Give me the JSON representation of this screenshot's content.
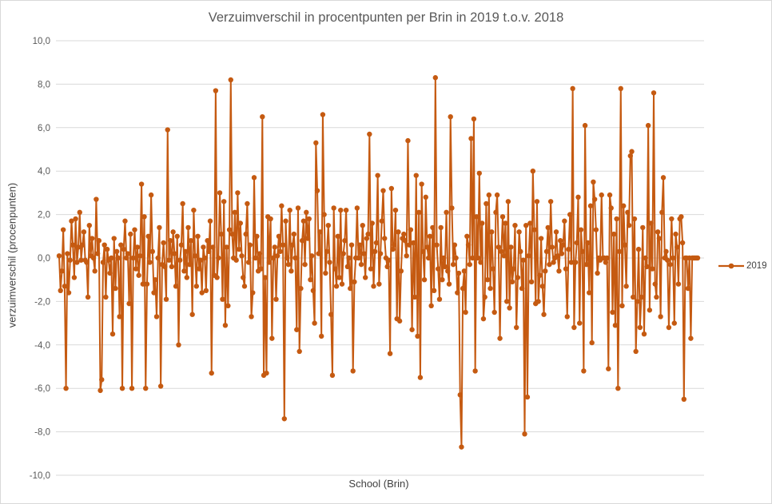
{
  "chart_data": {
    "type": "line",
    "title": "Verzuimverschil in procentpunten per Brin in 2019 t.o.v. 2018",
    "xlabel": "School (Brin)",
    "ylabel": "verzuimverschil (procenpunten)",
    "ylim": [
      -10,
      10
    ],
    "ytick_labels": [
      "10,0",
      "8,0",
      "6,0",
      "4,0",
      "2,0",
      "0,0",
      "-2,0",
      "-4,0",
      "-6,0",
      "-8,0",
      "-10,0"
    ],
    "grid": true,
    "legend": "right",
    "color": "#c55a11",
    "series": [
      {
        "name": "2019",
        "values": [
          0.1,
          -1.5,
          -0.6,
          1.3,
          -1.3,
          -6.0,
          0.2,
          -1.6,
          -0.1,
          1.7,
          0.6,
          -0.9,
          1.8,
          -0.2,
          0.5,
          2.1,
          -0.1,
          0.6,
          1.2,
          -0.1,
          -0.2,
          -1.8,
          1.5,
          0.1,
          0.9,
          0.0,
          -0.6,
          2.7,
          0.2,
          0.8,
          -6.1,
          -5.6,
          -0.2,
          0.6,
          -1.8,
          0.4,
          -0.1,
          -0.7,
          0.0,
          -3.5,
          0.9,
          -1.4,
          0.3,
          0.0,
          -2.7,
          0.6,
          -6.0,
          0.4,
          1.7,
          0.0,
          0.2,
          -2.1,
          1.1,
          -6.0,
          0.0,
          1.3,
          -0.5,
          0.5,
          -0.8,
          0.1,
          3.4,
          -1.2,
          1.9,
          -6.0,
          -1.2,
          1.0,
          -0.2,
          2.9,
          0.3,
          -1.6,
          -1.0,
          -2.7,
          0.0,
          1.4,
          -5.9,
          -0.3,
          0.7,
          -0.4,
          -1.9,
          5.9,
          -0.1,
          0.8,
          -0.4,
          1.2,
          0.2,
          -1.3,
          1.0,
          -4.0,
          -0.1,
          0.6,
          2.5,
          -0.6,
          0.3,
          -0.9,
          1.4,
          -0.3,
          0.8,
          -2.6,
          2.2,
          0.1,
          -1.3,
          1.0,
          -0.5,
          -0.1,
          -1.6,
          0.5,
          0.0,
          -1.5,
          0.8,
          0.3,
          1.7,
          -5.3,
          0.5,
          -0.8,
          7.7,
          -0.9,
          0.0,
          3.0,
          1.1,
          -1.9,
          2.6,
          -3.1,
          0.5,
          -2.2,
          1.3,
          8.2,
          1.1,
          0.0,
          2.1,
          -0.1,
          3.0,
          0.4,
          1.6,
          0.1,
          -0.9,
          -1.3,
          1.1,
          2.5,
          -0.2,
          0.6,
          -2.7,
          -1.6,
          3.7,
          0.0,
          1.0,
          -0.6,
          0.2,
          -0.5,
          6.5,
          -5.4,
          -0.9,
          -5.3,
          1.9,
          -0.2,
          1.8,
          -3.7,
          0.0,
          0.5,
          -1.9,
          0.1,
          1.0,
          0.3,
          2.4,
          0.6,
          -7.4,
          1.7,
          0.0,
          -0.3,
          2.2,
          -0.6,
          0.6,
          1.1,
          0.0,
          -3.3,
          2.3,
          -4.3,
          -1.4,
          0.8,
          1.7,
          -0.3,
          2.1,
          0.9,
          1.8,
          -1.0,
          0.1,
          -1.5,
          -3.0,
          5.3,
          3.1,
          0.2,
          1.2,
          -3.6,
          6.6,
          2.0,
          -0.7,
          0.3,
          1.5,
          -0.2,
          -2.6,
          -5.4,
          2.3,
          -0.5,
          -1.3,
          1.0,
          -0.9,
          2.2,
          -1.2,
          0.2,
          0.8,
          2.2,
          -0.4,
          0.0,
          -1.4,
          0.6,
          -5.2,
          -1.1,
          0.0,
          2.3,
          0.0,
          0.6,
          -0.3,
          1.5,
          0.2,
          -0.9,
          0.9,
          1.1,
          5.7,
          -0.5,
          1.6,
          -1.3,
          0.3,
          0.7,
          3.8,
          -1.2,
          0.2,
          1.7,
          3.1,
          0.9,
          0.0,
          -0.4,
          -0.1,
          -4.4,
          3.2,
          0.4,
          0.6,
          2.2,
          -2.8,
          1.2,
          -2.9,
          -0.6,
          0.9,
          1.1,
          0.8,
          0.1,
          5.4,
          0.6,
          1.3,
          -3.3,
          0.7,
          -1.8,
          3.8,
          -3.6,
          2.1,
          -5.5,
          3.4,
          0.3,
          -1.0,
          2.8,
          0.5,
          0.0,
          1.0,
          -2.2,
          1.4,
          -1.5,
          8.3,
          0.6,
          -0.5,
          -1.9,
          1.4,
          -1.0,
          0.0,
          -0.4,
          2.1,
          -0.6,
          -1.2,
          6.5,
          2.3,
          -0.3,
          0.6,
          0.0,
          -1.6,
          -0.7,
          -6.3,
          -8.7,
          -1.4,
          -0.6,
          -2.5,
          1.0,
          0.6,
          -0.3,
          5.5,
          0.0,
          6.4,
          -5.2,
          1.9,
          0.0,
          3.9,
          -0.2,
          1.6,
          -2.8,
          -1.8,
          2.5,
          -1.0,
          2.9,
          -1.4,
          1.2,
          -0.5,
          -2.5,
          2.1,
          2.9,
          0.5,
          -3.7,
          0.3,
          1.9,
          0.1,
          1.6,
          -2.0,
          2.6,
          -2.3,
          0.5,
          -1.1,
          -0.5,
          1.5,
          -3.2,
          -0.9,
          1.2,
          0.3,
          -1.4,
          -0.1,
          -8.1,
          1.5,
          -6.4,
          0.1,
          1.6,
          -1.1,
          4.0,
          1.3,
          -2.1,
          2.6,
          -2.0,
          -0.8,
          0.9,
          -1.3,
          -2.6,
          -0.6,
          0.3,
          1.4,
          -0.3,
          2.6,
          0.5,
          -0.2,
          0.0,
          1.2,
          0.1,
          -0.6,
          0.8,
          0.2,
          0.6,
          1.7,
          -0.5,
          -2.7,
          0.4,
          2.0,
          -0.2,
          7.8,
          -3.2,
          -0.2,
          0.7,
          2.8,
          -3.0,
          1.3,
          0.3,
          -5.2,
          6.1,
          -0.3,
          0.7,
          -1.6,
          2.4,
          -3.9,
          3.5,
          2.7,
          1.3,
          -0.7,
          0.0,
          -0.1,
          2.9,
          0.0,
          0.0,
          -0.2,
          0.0,
          -5.1,
          2.9,
          2.3,
          -2.5,
          1.1,
          -3.1,
          1.8,
          -6.0,
          0.3,
          7.8,
          -2.2,
          2.4,
          0.6,
          -1.3,
          2.1,
          1.5,
          4.7,
          4.9,
          -1.8,
          1.8,
          -4.3,
          -2.0,
          0.4,
          -3.2,
          -1.8,
          1.4,
          -3.5,
          0.0,
          -0.4,
          6.1,
          -2.4,
          1.6,
          -0.5,
          7.6,
          -1.2,
          -1.8,
          1.2,
          0.9,
          -2.7,
          2.1,
          3.7,
          0.0,
          0.3,
          -0.1,
          -3.2,
          -0.3,
          1.8,
          0.0,
          -3.0,
          1.1,
          0.5,
          -1.2,
          1.8,
          1.9,
          0.7,
          -6.5,
          0.0,
          0.0,
          -1.4,
          0.0,
          -3.7,
          0.0,
          0.0,
          0.0,
          0.0,
          0.0
        ]
      }
    ]
  }
}
